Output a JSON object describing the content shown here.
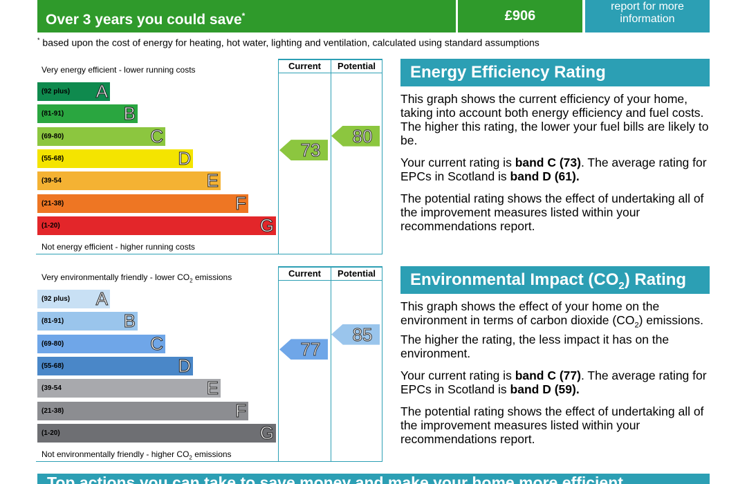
{
  "savings": {
    "label": "Over 3 years you could save",
    "asterisk": "*",
    "amount": "£906",
    "report_line1": "report for more",
    "report_line2": "information",
    "footnote_mark": "*",
    "footnote": " based upon the cost of energy for heating, hot water, lighting and ventilation, calculated using standard assumptions"
  },
  "efficiency_chart": {
    "col_current": "Current",
    "col_potential": "Potential",
    "top_label": "Very energy efficient - lower running costs",
    "bottom_label": "Not energy efficient - higher running costs",
    "bands": [
      {
        "range": "(92 plus)",
        "letter": "A",
        "color": "#0f8a4e"
      },
      {
        "range": "(81-91)",
        "letter": "B",
        "color": "#2aa640"
      },
      {
        "range": "(69-80)",
        "letter": "C",
        "color": "#8cc63f"
      },
      {
        "range": "(55-68)",
        "letter": "D",
        "color": "#f4e400"
      },
      {
        "range": "(39-54",
        "letter": "E",
        "color": "#f4b233"
      },
      {
        "range": "(21-38)",
        "letter": "F",
        "color": "#ee7623"
      },
      {
        "range": "(1-20)",
        "letter": "G",
        "color": "#e3262a"
      }
    ],
    "current": 73,
    "current_color": "#8cc63f",
    "potential": 80,
    "potential_color": "#8cc63f"
  },
  "environment_chart": {
    "col_current": "Current",
    "col_potential": "Potential",
    "top_label_pre": "Very environmentally friendly - lower CO",
    "top_label_sub": "2",
    "top_label_post": " emissions",
    "bottom_label_pre": "Not environmentally friendly - higher CO",
    "bottom_label_sub": "2",
    "bottom_label_post": " emissions",
    "bands": [
      {
        "range": "(92 plus)",
        "letter": "A",
        "color": "#c8e0f4"
      },
      {
        "range": "(81-91)",
        "letter": "B",
        "color": "#9ac5ec"
      },
      {
        "range": "(69-80)",
        "letter": "C",
        "color": "#6fa6e8"
      },
      {
        "range": "(55-68)",
        "letter": "D",
        "color": "#4a87c8"
      },
      {
        "range": "(39-54",
        "letter": "E",
        "color": "#a8a9ad"
      },
      {
        "range": "(21-38)",
        "letter": "F",
        "color": "#8c8d91"
      },
      {
        "range": "(1-20)",
        "letter": "G",
        "color": "#6e6f73"
      }
    ],
    "current": 77,
    "current_color": "#6fa6e8",
    "potential": 85,
    "potential_color": "#9ac5ec"
  },
  "efficiency_panel": {
    "title": "Energy Efficiency Rating",
    "p1": "This graph shows the current efficiency of your home, taking into account both energy efficiency and fuel costs. The higher this rating, the lower your fuel bills are likely to be.",
    "p2_pre": "Your current rating is ",
    "p2_bold1": "band C (73)",
    "p2_mid": ". The average rating for EPCs in Scotland is ",
    "p2_bold2": "band D (61).",
    "p3": "The potential rating shows the effect of undertaking all of the improvement measures listed within your recommendations report."
  },
  "environment_panel": {
    "title_pre": "Environmental Impact (CO",
    "title_sub": "2",
    "title_post": ") Rating",
    "p1_pre": "This graph shows the effect of your home on the environment in terms of carbon dioxide (CO",
    "p1_sub": "2",
    "p1_post": ") emissions. The higher the rating, the less impact it has on the environment.",
    "p2_pre": "Your current rating is ",
    "p2_bold1": "band C (77)",
    "p2_mid": ". The average rating for EPCs in Scotland is ",
    "p2_bold2": "band D (59).",
    "p3": "The potential rating shows the effect of undertaking all of the improvement measures listed within your recommendations report."
  },
  "bottom_banner": "Top actions you can take to save money and make your home more efficient"
}
